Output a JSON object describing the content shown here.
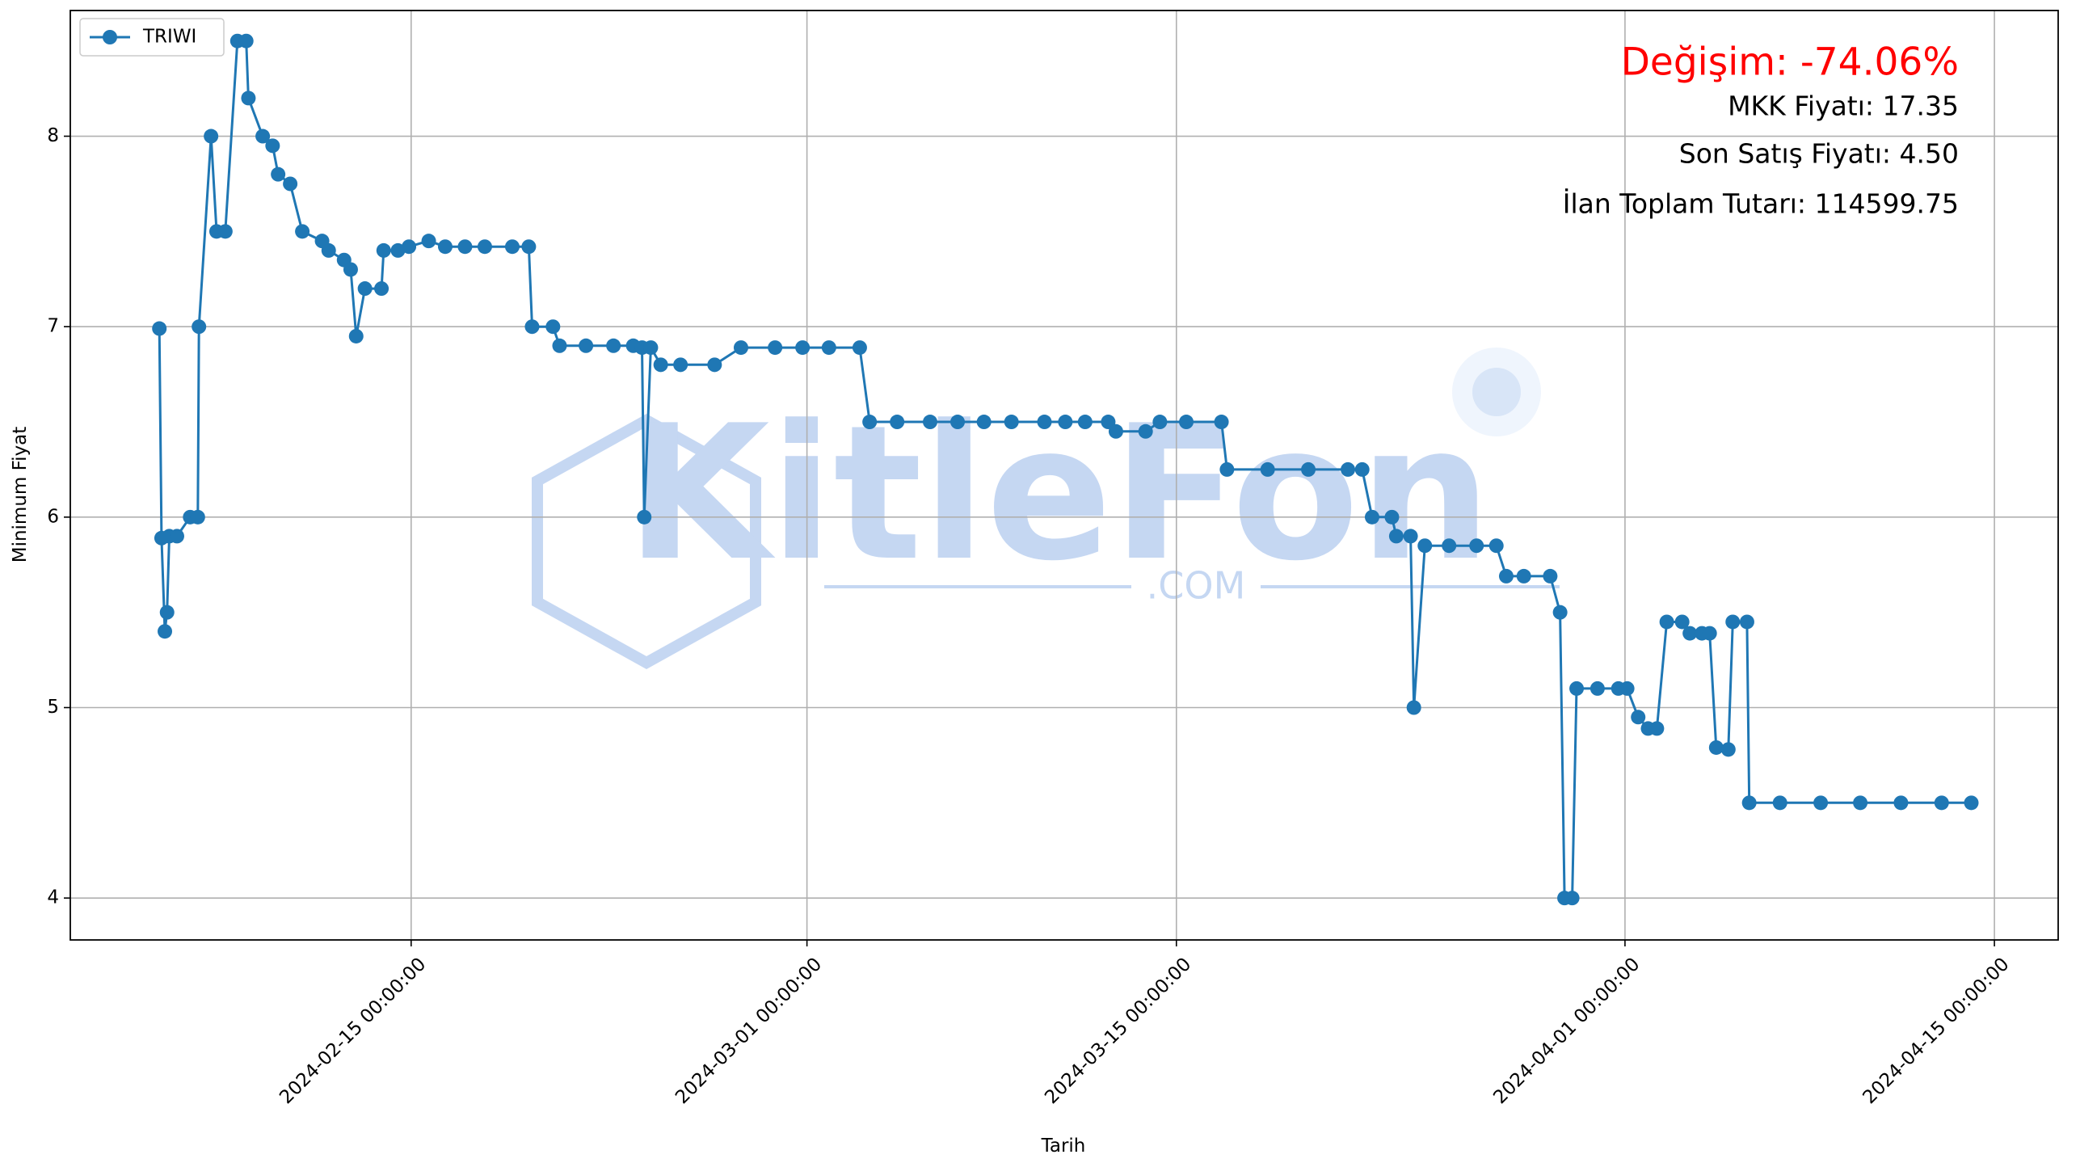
{
  "chart_data": {
    "type": "line",
    "xlabel": "Tarih",
    "ylabel": "Minimum Fiyat",
    "annotations": [
      "Değişim: -74.06%",
      "MKK Fiyatı: 17.35",
      "Son Satış Fiyatı: 4.50",
      "İlan Toplam Tutarı: 114599.75"
    ],
    "annotation_colors": [
      "#ff0000",
      "#000000",
      "#000000",
      "#000000"
    ],
    "watermark": [
      "KitleFon",
      ".COM"
    ],
    "legend": "upper left",
    "grid": true,
    "x": [
      "2024-02-05 11:00:00",
      "2024-02-05 13:00:00",
      "2024-02-05 16:00:00",
      "2024-02-05 18:00:00",
      "2024-02-05 20:00:00",
      "2024-02-06 03:00:00",
      "2024-02-06 15:00:00",
      "2024-02-06 22:00:00",
      "2024-02-06 23:00:00",
      "2024-02-07 10:00:00",
      "2024-02-07 15:00:00",
      "2024-02-07 23:00:00",
      "2024-02-08 10:00:00",
      "2024-02-08 18:00:00",
      "2024-02-08 20:00:00",
      "2024-02-09 09:00:00",
      "2024-02-09 18:00:00",
      "2024-02-09 23:00:00",
      "2024-02-10 10:00:00",
      "2024-02-10 21:00:00",
      "2024-02-11 15:00:00",
      "2024-02-11 21:00:00",
      "2024-02-12 11:00:00",
      "2024-02-12 17:00:00",
      "2024-02-12 22:00:00",
      "2024-02-13 06:00:00",
      "2024-02-13 21:00:00",
      "2024-02-13 23:00:00",
      "2024-02-14 12:00:00",
      "2024-02-14 22:00:00",
      "2024-02-15 16:00:00",
      "2024-02-16 07:00:00",
      "2024-02-17 01:00:00",
      "2024-02-17 19:00:00",
      "2024-02-18 20:00:00",
      "2024-02-19 11:00:00",
      "2024-02-19 14:00:00",
      "2024-02-20 09:00:00",
      "2024-02-20 15:00:00",
      "2024-02-21 15:00:00",
      "2024-02-22 16:00:00",
      "2024-02-23 10:00:00",
      "2024-02-23 18:00:00",
      "2024-02-23 20:00:00",
      "2024-02-24 02:00:00",
      "2024-02-24 11:00:00",
      "2024-02-25 05:00:00",
      "2024-02-26 12:00:00",
      "2024-02-27 12:00:00",
      "2024-02-28 19:00:00",
      "2024-02-29 20:00:00",
      "2024-03-01 20:00:00",
      "2024-03-03 00:00:00",
      "2024-03-03 09:00:00",
      "2024-03-04 10:00:00",
      "2024-03-05 16:00:00",
      "2024-03-06 17:00:00",
      "2024-03-07 17:00:00",
      "2024-03-08 18:00:00",
      "2024-03-10 00:00:00",
      "2024-03-10 19:00:00",
      "2024-03-11 13:00:00",
      "2024-03-12 10:00:00",
      "2024-03-12 17:00:00",
      "2024-03-13 20:00:00",
      "2024-03-14 09:00:00",
      "2024-03-15 09:00:00",
      "2024-03-16 17:00:00",
      "2024-03-16 22:00:00",
      "2024-03-18 11:00:00",
      "2024-03-20 00:00:00",
      "2024-03-21 12:00:00",
      "2024-03-22 01:00:00",
      "2024-03-22 10:00:00",
      "2024-03-23 04:00:00",
      "2024-03-23 08:00:00",
      "2024-03-23 21:00:00",
      "2024-03-24 00:00:00",
      "2024-03-24 10:00:00",
      "2024-03-25 08:00:00",
      "2024-03-26 09:00:00",
      "2024-03-27 03:00:00",
      "2024-03-27 12:00:00",
      "2024-03-28 04:00:00",
      "2024-03-29 04:00:00",
      "2024-03-29 13:00:00",
      "2024-03-29 17:00:00",
      "2024-03-30 00:00:00",
      "2024-03-30 04:00:00",
      "2024-03-30 23:00:00",
      "2024-03-31 18:00:00",
      "2024-04-01 02:00:00",
      "2024-04-01 12:00:00",
      "2024-04-01 21:00:00",
      "2024-04-02 05:00:00",
      "2024-04-02 14:00:00",
      "2024-04-03 04:00:00",
      "2024-04-03 11:00:00",
      "2024-04-03 22:00:00",
      "2024-04-04 05:00:00",
      "2024-04-04 11:00:00",
      "2024-04-04 22:00:00",
      "2024-04-05 02:00:00",
      "2024-04-05 15:00:00",
      "2024-04-05 17:00:00",
      "2024-04-06 21:00:00",
      "2024-04-08 10:00:00",
      "2024-04-09 22:00:00",
      "2024-04-11 11:00:00",
      "2024-04-13 00:00:00",
      "2024-04-14 03:00:00"
    ],
    "series": [
      {
        "name": "TRIWI",
        "color": "#1f77b4",
        "values": [
          6.99,
          5.89,
          5.4,
          5.5,
          5.9,
          5.9,
          6.0,
          6.0,
          7.0,
          8.0,
          7.5,
          7.5,
          8.5,
          8.5,
          8.2,
          8.0,
          7.95,
          7.8,
          7.75,
          7.5,
          7.45,
          7.4,
          7.35,
          7.3,
          6.95,
          7.2,
          7.2,
          7.4,
          7.4,
          7.42,
          7.45,
          7.42,
          7.42,
          7.42,
          7.42,
          7.42,
          7.0,
          7.0,
          6.9,
          6.9,
          6.9,
          6.9,
          6.89,
          6.0,
          6.89,
          6.8,
          6.8,
          6.8,
          6.89,
          6.89,
          6.89,
          6.89,
          6.89,
          6.5,
          6.5,
          6.5,
          6.5,
          6.5,
          6.5,
          6.5,
          6.5,
          6.5,
          6.5,
          6.45,
          6.45,
          6.5,
          6.5,
          6.5,
          6.25,
          6.25,
          6.25,
          6.25,
          6.25,
          6.0,
          6.0,
          5.9,
          5.9,
          5.0,
          5.85,
          5.85,
          5.85,
          5.85,
          5.69,
          5.69,
          5.69,
          5.5,
          4.0,
          4.0,
          5.1,
          5.1,
          5.1,
          5.1,
          4.95,
          4.89,
          4.89,
          5.45,
          5.45,
          5.39,
          5.39,
          5.39,
          4.79,
          4.78,
          5.45,
          5.45,
          4.5,
          4.5,
          4.5,
          4.5,
          4.5,
          4.5,
          4.5
        ]
      }
    ],
    "xlim": [
      "2024-02-02 02:00:00",
      "2024-04-17 10:00:00"
    ],
    "xticks": [
      "2024-02-15 00:00:00",
      "2024-03-01 00:00:00",
      "2024-03-15 00:00:00",
      "2024-04-01 00:00:00",
      "2024-04-15 00:00:00"
    ],
    "ylim": [
      3.78,
      8.66
    ],
    "yticks": [
      4,
      5,
      6,
      7,
      8
    ]
  }
}
